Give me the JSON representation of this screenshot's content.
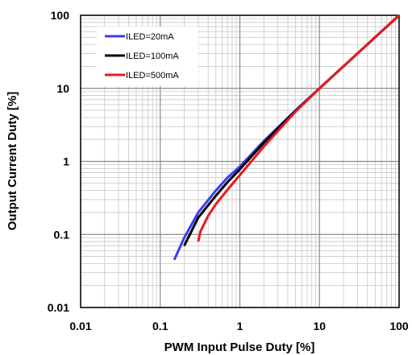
{
  "chart_data": {
    "type": "line",
    "xscale": "log",
    "yscale": "log",
    "xlim": [
      0.01,
      100
    ],
    "ylim": [
      0.01,
      100
    ],
    "xlabel": "PWM Input Pulse Duty [%]",
    "ylabel": "Output Current Duty [%]",
    "xticks": [
      "0.01",
      "0.1",
      "1",
      "10",
      "100"
    ],
    "yticks": [
      "0.01",
      "0.1",
      "1",
      "10",
      "100"
    ],
    "grid": true,
    "legend_position": "top-left",
    "series": [
      {
        "name": "ILED=20mA",
        "color": "#3c3cf0",
        "points": [
          [
            0.15,
            0.045
          ],
          [
            0.2,
            0.09
          ],
          [
            0.3,
            0.2
          ],
          [
            0.5,
            0.4
          ],
          [
            0.7,
            0.6
          ],
          [
            1.0,
            0.85
          ],
          [
            2.0,
            1.9
          ],
          [
            5.0,
            5.0
          ],
          [
            10,
            10
          ],
          [
            30,
            30
          ],
          [
            100,
            100
          ]
        ]
      },
      {
        "name": "ILED=100mA",
        "color": "#000000",
        "points": [
          [
            0.2,
            0.07
          ],
          [
            0.3,
            0.17
          ],
          [
            0.5,
            0.34
          ],
          [
            0.7,
            0.52
          ],
          [
            1.0,
            0.78
          ],
          [
            2.0,
            1.8
          ],
          [
            5.0,
            4.9
          ],
          [
            10,
            10
          ],
          [
            30,
            30
          ],
          [
            100,
            100
          ]
        ]
      },
      {
        "name": "ILED=500mA",
        "color": "#e8191e",
        "points": [
          [
            0.3,
            0.08
          ],
          [
            0.32,
            0.11
          ],
          [
            0.4,
            0.18
          ],
          [
            0.5,
            0.26
          ],
          [
            0.7,
            0.41
          ],
          [
            1.0,
            0.65
          ],
          [
            1.5,
            1.1
          ],
          [
            2.0,
            1.6
          ],
          [
            5.0,
            4.8
          ],
          [
            10,
            10
          ],
          [
            30,
            30
          ],
          [
            100,
            100
          ]
        ]
      }
    ]
  }
}
